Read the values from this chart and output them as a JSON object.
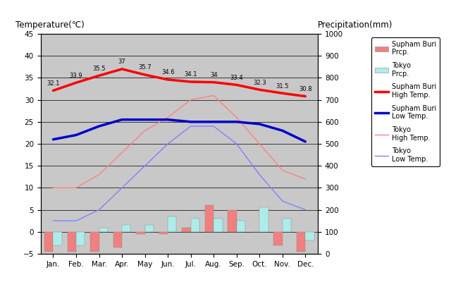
{
  "months": [
    "Jan.",
    "Feb.",
    "Mar.",
    "Apr.",
    "May",
    "Jun.",
    "Jul.",
    "Aug.",
    "Sep.",
    "Oct.",
    "Nov.",
    "Dec."
  ],
  "supham_high_temp": [
    32.1,
    33.9,
    35.5,
    37.0,
    35.7,
    34.6,
    34.1,
    34.0,
    33.4,
    32.3,
    31.5,
    30.8
  ],
  "supham_low_temp": [
    21.0,
    22.0,
    24.0,
    25.5,
    25.5,
    25.5,
    25.0,
    25.0,
    25.0,
    24.5,
    23.0,
    20.5
  ],
  "tokyo_high_temp": [
    10.0,
    10.0,
    13.0,
    18.0,
    23.0,
    26.0,
    30.0,
    31.0,
    26.0,
    20.0,
    14.0,
    12.0
  ],
  "tokyo_low_temp": [
    2.5,
    2.5,
    5.0,
    10.0,
    15.0,
    20.0,
    24.0,
    24.0,
    20.0,
    13.0,
    7.0,
    5.0
  ],
  "supham_prcp_bar": [
    -4.5,
    -4.5,
    -4.5,
    -3.5,
    -0.5,
    -0.5,
    1.0,
    6.0,
    5.0,
    0.0,
    -3.0,
    -4.5
  ],
  "tokyo_prcp_bar": [
    -3.0,
    -3.0,
    1.0,
    1.5,
    1.5,
    3.5,
    3.0,
    3.0,
    2.5,
    5.5,
    3.0,
    -2.0
  ],
  "supham_high_labels": [
    "32.1",
    "33.9",
    "35.5",
    "37",
    "35.7",
    "34.6",
    "34.1",
    "34",
    "33.4",
    "32.3",
    "31.5",
    "30.8"
  ],
  "colors": {
    "supham_prcp": "#F08080",
    "tokyo_prcp": "#AEECEA",
    "supham_high": "#FF0000",
    "supham_low": "#0000CC",
    "tokyo_high": "#FF8080",
    "tokyo_low": "#8080FF",
    "plot_bg": "#C8C8C8",
    "fig_bg": "#FFFFFF",
    "grid": "#000000"
  },
  "title_left": "Temperature(℃)",
  "title_right": "Precipitation(mm)",
  "ylim_temp": [
    -5,
    45
  ],
  "ylim_prcp": [
    0,
    1000
  ],
  "figsize": [
    6.4,
    4.0
  ],
  "dpi": 100
}
